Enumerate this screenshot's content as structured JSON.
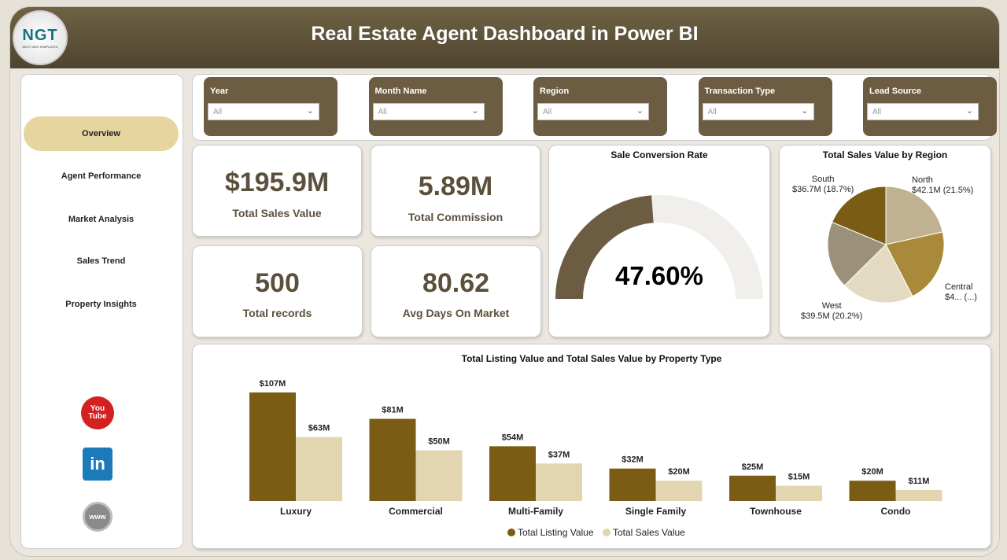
{
  "header": {
    "title": "Real Estate Agent Dashboard in Power BI",
    "logo_text": "NGT",
    "logo_sub": "NEXT GEN TEMPLATES"
  },
  "sidebar": {
    "items": [
      {
        "label": "Overview",
        "active": true
      },
      {
        "label": "Agent Performance"
      },
      {
        "label": "Market Analysis"
      },
      {
        "label": "Sales Trend"
      },
      {
        "label": "Property Insights"
      }
    ],
    "social": [
      {
        "icon": "youtube-icon",
        "text": "You Tube",
        "color": "#d32020"
      },
      {
        "icon": "linkedin-icon",
        "text": "in",
        "color": "#1d7ab8"
      },
      {
        "icon": "globe-icon",
        "text": "www",
        "color": "#8a8a8a"
      }
    ]
  },
  "filters": [
    {
      "label": "Year",
      "value": "All"
    },
    {
      "label": "Month Name",
      "value": "All"
    },
    {
      "label": "Region",
      "value": "All"
    },
    {
      "label": "Transaction Type",
      "value": "All"
    },
    {
      "label": "Lead Source",
      "value": "All"
    }
  ],
  "kpis": [
    {
      "value": "$195.9M",
      "label": "Total Sales Value"
    },
    {
      "value": "5.89M",
      "label": "Total Commission"
    },
    {
      "value": "500",
      "label": "Total records"
    },
    {
      "value": "80.62",
      "label": "Avg Days On Market"
    }
  ],
  "gauge": {
    "title": "Sale Conversion Rate",
    "value": 47.6,
    "label": "47.60%",
    "fill": "#6b5c42",
    "track": "#f1efec"
  },
  "chart_data": [
    {
      "type": "pie",
      "title": "Total Sales Value by Region",
      "slices": [
        {
          "name": "North",
          "value": 42.1,
          "pct": 21.5,
          "label": "$42.1M (21.5%)",
          "color": "#c0b290"
        },
        {
          "name": "Central",
          "value": 41.0,
          "pct": 20.9,
          "label": "$4... (...)",
          "color": "#a88a3a"
        },
        {
          "name": "West",
          "value": 39.5,
          "pct": 20.2,
          "label": "$39.5M (20.2%)",
          "color": "#e3dac3"
        },
        {
          "name": "",
          "value": 36.6,
          "pct": 18.7,
          "label": "",
          "color": "#9b917a"
        },
        {
          "name": "South",
          "value": 36.7,
          "pct": 18.7,
          "label": "$36.7M (18.7%)",
          "color": "#7a5c14"
        }
      ]
    },
    {
      "type": "bar",
      "title": "Total Listing Value and Total Sales Value by Property Type",
      "categories": [
        "Luxury",
        "Commercial",
        "Multi-Family",
        "Single Family",
        "Townhouse",
        "Condo"
      ],
      "series": [
        {
          "name": "Total Listing Value",
          "values": [
            107,
            81,
            54,
            32,
            25,
            20
          ],
          "labels": [
            "$107M",
            "$81M",
            "$54M",
            "$32M",
            "$25M",
            "$20M"
          ],
          "color": "#7a5c14"
        },
        {
          "name": "Total Sales Value",
          "values": [
            63,
            50,
            37,
            20,
            15,
            11
          ],
          "labels": [
            "$63M",
            "$50M",
            "$37M",
            "$20M",
            "$15M",
            "$11M"
          ],
          "color": "#e3d5b0"
        }
      ],
      "legend": "bottom-center",
      "ylim": [
        0,
        115
      ]
    }
  ]
}
